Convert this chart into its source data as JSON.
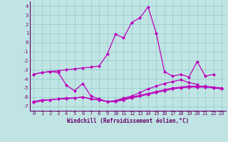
{
  "xlabel": "Windchill (Refroidissement éolien,°C)",
  "background_color": "#c0e4e4",
  "grid_color": "#90c8c8",
  "line_color": "#bb00bb",
  "xlim": [
    -0.5,
    23.5
  ],
  "ylim": [
    -7.5,
    4.5
  ],
  "xticks": [
    0,
    1,
    2,
    3,
    4,
    5,
    6,
    7,
    8,
    9,
    10,
    11,
    12,
    13,
    14,
    15,
    16,
    17,
    18,
    19,
    20,
    21,
    22,
    23
  ],
  "yticks": [
    -7,
    -6,
    -5,
    -4,
    -3,
    -2,
    -1,
    0,
    1,
    2,
    3,
    4
  ],
  "line1_x": [
    0,
    1,
    2,
    3,
    4,
    5,
    6,
    7,
    8,
    9,
    10,
    11,
    12,
    13,
    14,
    15,
    16,
    17,
    18,
    19,
    20,
    21,
    22
  ],
  "line1_y": [
    -3.5,
    -3.3,
    -3.2,
    -3.1,
    -3.0,
    -2.9,
    -2.8,
    -2.7,
    -2.6,
    -1.3,
    0.9,
    0.5,
    2.2,
    2.7,
    3.9,
    1.0,
    -3.2,
    -3.7,
    -3.5,
    -3.8,
    -2.1,
    -3.7,
    -3.5
  ],
  "line2_x": [
    0,
    1,
    2,
    3,
    4,
    5,
    6,
    7,
    8,
    9,
    10,
    11,
    12,
    13,
    14,
    15,
    16,
    17,
    18,
    19,
    20
  ],
  "line2_y": [
    -3.5,
    -3.3,
    -3.2,
    -3.3,
    -4.7,
    -5.3,
    -4.5,
    -5.9,
    -6.2,
    -6.5,
    -6.4,
    -6.1,
    -5.9,
    -5.5,
    -5.1,
    -4.8,
    -4.5,
    -4.3,
    -4.1,
    -4.4,
    -4.6
  ],
  "line3_x": [
    0,
    1,
    2,
    3,
    4,
    5,
    6,
    7,
    8,
    9,
    10,
    11,
    12,
    13,
    14,
    15,
    16,
    17,
    18,
    19,
    20,
    21,
    22,
    23
  ],
  "line3_y": [
    -6.5,
    -6.3,
    -6.3,
    -6.2,
    -6.1,
    -6.1,
    -6.0,
    -6.2,
    -6.3,
    -6.5,
    -6.4,
    -6.2,
    -6.0,
    -5.8,
    -5.6,
    -5.4,
    -5.2,
    -5.0,
    -4.9,
    -4.8,
    -4.8,
    -4.8,
    -4.9,
    -5.0
  ],
  "line4_x": [
    0,
    1,
    2,
    3,
    4,
    5,
    6,
    7,
    8,
    9,
    10,
    11,
    12,
    13,
    14,
    15,
    16,
    17,
    18,
    19,
    20,
    21,
    22,
    23
  ],
  "line4_y": [
    -6.6,
    -6.4,
    -6.3,
    -6.2,
    -6.2,
    -6.1,
    -6.0,
    -6.2,
    -6.3,
    -6.5,
    -6.5,
    -6.3,
    -6.1,
    -5.9,
    -5.7,
    -5.5,
    -5.3,
    -5.1,
    -5.0,
    -4.9,
    -4.9,
    -4.9,
    -5.0,
    -5.1
  ],
  "tick_fontsize": 5,
  "xlabel_fontsize": 5.5,
  "tick_color": "#660066",
  "xlabel_color": "#660066"
}
